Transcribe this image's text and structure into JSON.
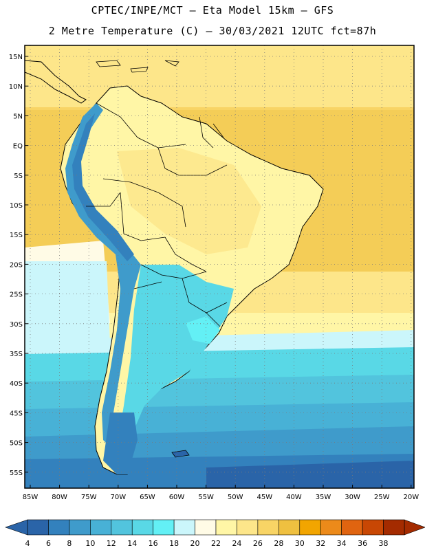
{
  "header": {
    "line1": "CPTEC/INPE/MCT –  Eta Model 15km – GFS",
    "line2": "2 Metre Temperature (C) – 30/03/2021 12UTC fct=87h"
  },
  "map": {
    "lat_ticks": [
      "15N",
      "10N",
      "5N",
      "EQ",
      "5S",
      "10S",
      "15S",
      "20S",
      "25S",
      "30S",
      "35S",
      "40S",
      "45S",
      "50S",
      "55S"
    ],
    "lon_ticks": [
      "85W",
      "80W",
      "75W",
      "70W",
      "65W",
      "60W",
      "55W",
      "50W",
      "45W",
      "40W",
      "35W",
      "30W",
      "25W",
      "20W"
    ],
    "grid": "dotted",
    "extent": {
      "lon": [
        -86,
        -20
      ],
      "lat": [
        -58,
        17
      ]
    }
  },
  "colorbar": {
    "labels": [
      "4",
      "6",
      "8",
      "10",
      "12",
      "14",
      "16",
      "18",
      "20",
      "22",
      "24",
      "26",
      "28",
      "30",
      "32",
      "34",
      "36",
      "38"
    ],
    "colors": [
      "#2a64a8",
      "#3381bd",
      "#3f9bcb",
      "#48b1d6",
      "#52c4dd",
      "#59d8e6",
      "#63f0f5",
      "#cbf6fb",
      "#fffbe6",
      "#fff6a6",
      "#fde68a",
      "#f8d465",
      "#efc040",
      "#f2a500",
      "#ec8a1a",
      "#e06410",
      "#c84704",
      "#a42b00"
    ],
    "left_arrow_color": "#2a64a8",
    "right_arrow_color": "#a42b00"
  }
}
